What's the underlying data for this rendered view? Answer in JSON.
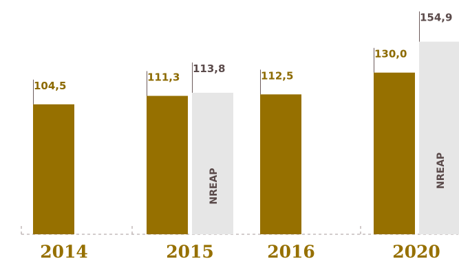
{
  "chart_data": {
    "type": "bar",
    "categories": [
      "2014",
      "2015",
      "2016",
      "2020"
    ],
    "bars": [
      {
        "category": "2014",
        "series": "actual",
        "value": 104.5,
        "label": "104,5"
      },
      {
        "category": "2015",
        "series": "actual",
        "value": 111.3,
        "label": "111,3"
      },
      {
        "category": "2015",
        "series": "nreap",
        "value": 113.8,
        "label": "113,8",
        "inner_label": "NREAP"
      },
      {
        "category": "2016",
        "series": "actual",
        "value": 112.5,
        "label": "112,5"
      },
      {
        "category": "2020",
        "series": "actual",
        "value": 130.0,
        "label": "130,0"
      },
      {
        "category": "2020",
        "series": "nreap",
        "value": 154.9,
        "label": "154,9",
        "inner_label": "NREAP"
      }
    ],
    "colors": {
      "actual": "#967000",
      "nreap": "#e6e6e6",
      "actual_label": "#8c6a00",
      "nreap_label": "#5a4a4a",
      "inner_label": "#5a4a4a",
      "category_label": "#967000",
      "connector": "#6b5a5a",
      "axis": "#b8aeae"
    }
  }
}
